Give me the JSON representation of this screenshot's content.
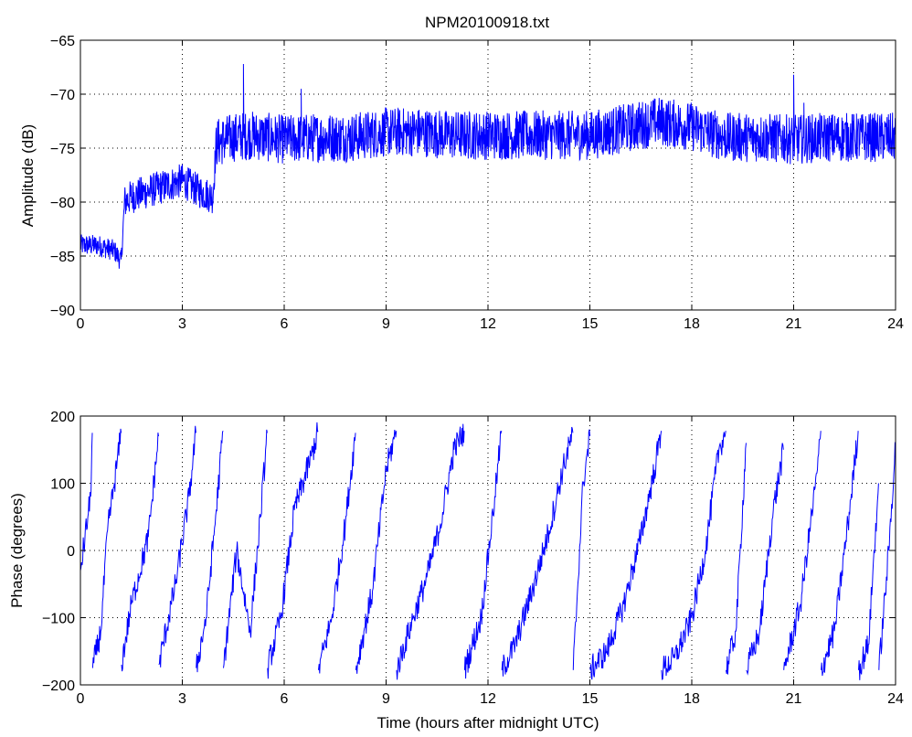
{
  "figure": {
    "title": "NPM20100918.txt",
    "series_color": "#0000ff"
  },
  "chart_data": [
    {
      "type": "line",
      "title": "NPM20100918.txt",
      "xlabel": "",
      "ylabel": "Amplitude (dB)",
      "xlim": [
        0,
        24
      ],
      "ylim": [
        -90,
        -65
      ],
      "xticks": [
        0,
        3,
        6,
        9,
        12,
        15,
        18,
        21,
        24
      ],
      "yticks": [
        -90,
        -85,
        -80,
        -75,
        -70,
        -65
      ],
      "xtick_labels": [
        "0",
        "3",
        "6",
        "9",
        "12",
        "15",
        "18",
        "21",
        "24"
      ],
      "ytick_labels": [
        "−90",
        "−85",
        "−80",
        "−75",
        "−70",
        "−65"
      ],
      "grid": true,
      "series": [
        {
          "color": "#0000ff",
          "envelope": {
            "x": [
              0,
              0.5,
              1.0,
              1.2,
              1.3,
              1.5,
              2.0,
              2.5,
              3.0,
              3.5,
              3.9,
              4.0,
              4.5,
              5.0,
              6.0,
              7.0,
              8.0,
              9.0,
              10.0,
              11.0,
              12.0,
              13.0,
              14.0,
              15.0,
              16.0,
              17.0,
              18.0,
              19.0,
              20.0,
              21.0,
              22.0,
              23.0,
              24.0
            ],
            "mid": [
              -84,
              -84,
              -84.5,
              -85.5,
              -80,
              -79.5,
              -79,
              -78.5,
              -78,
              -79,
              -79.5,
              -74.5,
              -74,
              -73.8,
              -74.2,
              -74,
              -74,
              -73.5,
              -73.5,
              -73.8,
              -73.8,
              -73.8,
              -73.8,
              -73.8,
              -73.2,
              -72.5,
              -73,
              -74,
              -74,
              -74.2,
              -74,
              -74,
              -74
            ]
          },
          "spikes": [
            [
              4.8,
              -67.2
            ],
            [
              6.5,
              -69.5
            ],
            [
              21.0,
              -68.2
            ],
            [
              21.3,
              -70.8
            ]
          ]
        }
      ]
    },
    {
      "type": "line",
      "title": "",
      "xlabel": "Time (hours after midnight UTC)",
      "ylabel": "Phase (degrees)",
      "xlim": [
        0,
        24
      ],
      "ylim": [
        -200,
        200
      ],
      "xticks": [
        0,
        3,
        6,
        9,
        12,
        15,
        18,
        21,
        24
      ],
      "yticks": [
        -200,
        -100,
        0,
        100,
        200
      ],
      "xtick_labels": [
        "0",
        "3",
        "6",
        "9",
        "12",
        "15",
        "18",
        "21",
        "24"
      ],
      "ytick_labels": [
        "−200",
        "−100",
        "0",
        "100",
        "200"
      ],
      "grid": true,
      "series": [
        {
          "color": "#0000ff",
          "wrap_range": [
            -180,
            180
          ],
          "segments": [
            [
              0.0,
              -30
            ],
            [
              0.3,
              80
            ],
            [
              0.35,
              175
            ],
            [
              0.36,
              -175
            ],
            [
              0.6,
              -120
            ],
            [
              0.8,
              30
            ],
            [
              1.0,
              100
            ],
            [
              1.2,
              175
            ],
            [
              1.21,
              -170
            ],
            [
              1.5,
              -80
            ],
            [
              2.0,
              20
            ],
            [
              2.3,
              170
            ],
            [
              2.31,
              -170
            ],
            [
              2.8,
              -50
            ],
            [
              3.2,
              80
            ],
            [
              3.4,
              175
            ],
            [
              3.41,
              -175
            ],
            [
              3.7,
              -100
            ],
            [
              4.0,
              60
            ],
            [
              4.2,
              178
            ],
            [
              4.21,
              -175
            ],
            [
              4.6,
              0
            ],
            [
              5.0,
              -120
            ],
            [
              5.3,
              50
            ],
            [
              5.5,
              175
            ],
            [
              5.51,
              -175
            ],
            [
              5.9,
              -100
            ],
            [
              6.3,
              60
            ],
            [
              6.8,
              140
            ],
            [
              7.0,
              178
            ],
            [
              7.01,
              -178
            ],
            [
              7.4,
              -100
            ],
            [
              7.8,
              40
            ],
            [
              8.1,
              175
            ],
            [
              8.11,
              -178
            ],
            [
              8.6,
              -60
            ],
            [
              9.0,
              120
            ],
            [
              9.3,
              178
            ],
            [
              9.31,
              -178
            ],
            [
              9.8,
              -100
            ],
            [
              10.2,
              -40
            ],
            [
              10.6,
              40
            ],
            [
              11.0,
              150
            ],
            [
              11.3,
              178
            ],
            [
              11.31,
              -178
            ],
            [
              11.8,
              -100
            ],
            [
              12.2,
              80
            ],
            [
              12.4,
              178
            ],
            [
              12.41,
              -178
            ],
            [
              12.8,
              -140
            ],
            [
              13.3,
              -60
            ],
            [
              13.8,
              30
            ],
            [
              14.2,
              120
            ],
            [
              14.5,
              175
            ],
            [
              14.51,
              -178
            ],
            [
              14.8,
              100
            ],
            [
              15.0,
              170
            ],
            [
              15.01,
              -178
            ],
            [
              15.5,
              -150
            ],
            [
              16.0,
              -80
            ],
            [
              16.5,
              20
            ],
            [
              16.9,
              120
            ],
            [
              17.1,
              178
            ],
            [
              17.11,
              -178
            ],
            [
              17.5,
              -160
            ],
            [
              18.0,
              -100
            ],
            [
              18.4,
              0
            ],
            [
              18.8,
              150
            ],
            [
              19.0,
              178
            ],
            [
              19.01,
              -178
            ],
            [
              19.3,
              -120
            ],
            [
              19.6,
              160
            ],
            [
              19.61,
              -178
            ],
            [
              20.0,
              -120
            ],
            [
              20.4,
              60
            ],
            [
              20.7,
              150
            ],
            [
              20.71,
              -178
            ],
            [
              21.2,
              -80
            ],
            [
              21.7,
              120
            ],
            [
              21.8,
              178
            ],
            [
              21.81,
              -178
            ],
            [
              22.2,
              -120
            ],
            [
              22.6,
              40
            ],
            [
              22.9,
              178
            ],
            [
              22.91,
              -178
            ],
            [
              23.2,
              -140
            ],
            [
              23.5,
              100
            ],
            [
              23.51,
              -178
            ],
            [
              23.8,
              0
            ],
            [
              24.0,
              160
            ]
          ]
        }
      ]
    }
  ]
}
